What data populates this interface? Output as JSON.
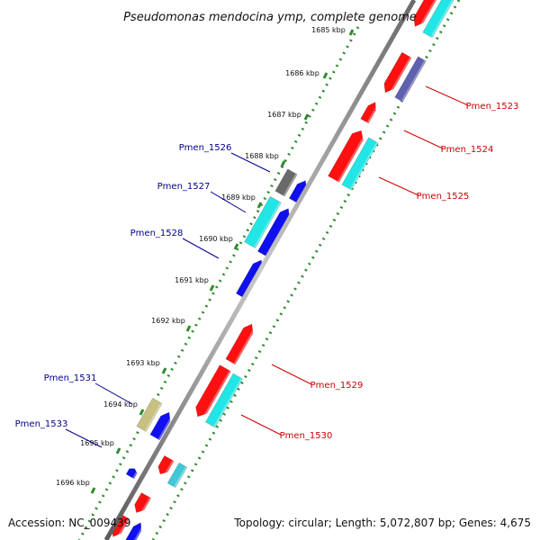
{
  "title": "Pseudomonas mendocina ymp, complete genome",
  "accession": "Accession: NC_009439",
  "topology": "Topology: circular; Length: 5,072,807 bp; Genes: 4,675",
  "colors": {
    "backbone": "#8c8c8c",
    "tick_dots": "#2e8b2e",
    "red_gene": "#ff1010",
    "cyan_gene": "#22e6e6",
    "blue_gene": "#1010ee",
    "gray_gene": "#6a6a6a",
    "khaki_gene": "#c8c080",
    "label_blue": "#00008b",
    "label_red": "#cc0000"
  },
  "ticks": [
    "1685 kbp",
    "1686 kbp",
    "1687 kbp",
    "1688 kbp",
    "1689 kbp",
    "1690 kbp",
    "1691 kbp",
    "1692 kbp",
    "1693 kbp",
    "1694 kbp",
    "1695 kbp",
    "1696 kbp"
  ],
  "gene_labels_left": [
    "Pmen_1526",
    "Pmen_1527",
    "Pmen_1528",
    "Pmen_1531",
    "Pmen_1533"
  ],
  "gene_labels_right": [
    "Pmen_1523",
    "Pmen_1524",
    "Pmen_1525",
    "Pmen_1529",
    "Pmen_1530"
  ]
}
